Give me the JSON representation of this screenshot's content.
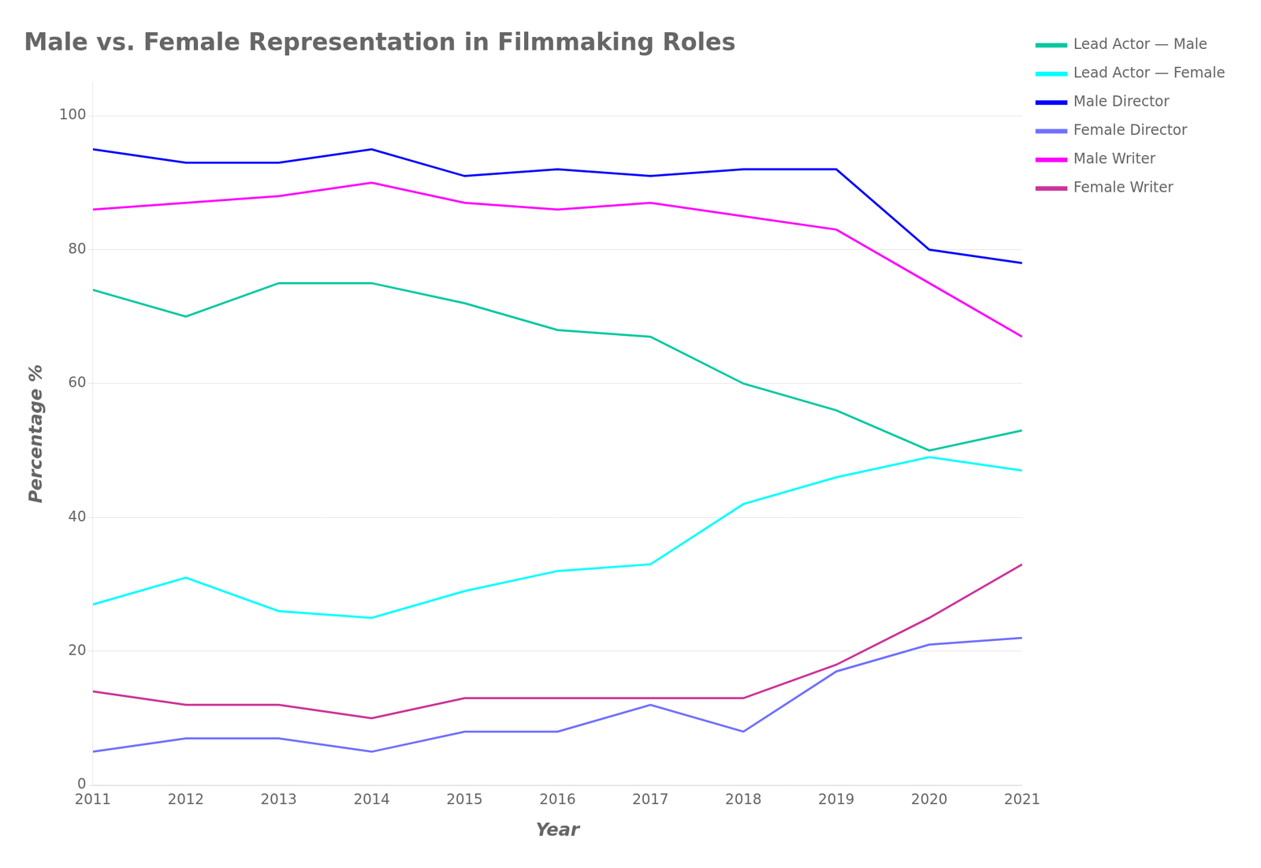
{
  "chart_data": {
    "type": "line",
    "title": "Male vs. Female Representation in Filmmaking Roles",
    "xlabel": "Year",
    "ylabel": "Percentage %",
    "x": [
      2011,
      2012,
      2013,
      2014,
      2015,
      2016,
      2017,
      2018,
      2019,
      2020,
      2021
    ],
    "series": [
      {
        "name": "Lead Actor — Male",
        "color": "#00C8A0",
        "values": [
          74,
          70,
          75,
          75,
          72,
          68,
          67,
          60,
          56,
          50,
          53
        ]
      },
      {
        "name": "Lead Actor — Female",
        "color": "#00FFFF",
        "values": [
          27,
          31,
          26,
          25,
          29,
          32,
          33,
          42,
          46,
          49,
          47
        ]
      },
      {
        "name": "Male Director",
        "color": "#0000FF",
        "values": [
          95,
          93,
          93,
          95,
          91,
          92,
          91,
          92,
          92,
          80,
          78
        ]
      },
      {
        "name": "Female Director",
        "color": "#7070FF",
        "values": [
          5,
          7,
          7,
          5,
          8,
          8,
          12,
          8,
          17,
          21,
          22
        ]
      },
      {
        "name": "Male Writer",
        "color": "#FF00FF",
        "values": [
          86,
          87,
          88,
          90,
          87,
          86,
          87,
          85,
          83,
          75,
          67
        ]
      },
      {
        "name": "Female Writer",
        "color": "#CC3399",
        "values": [
          14,
          12,
          12,
          10,
          13,
          13,
          13,
          13,
          18,
          25,
          33
        ]
      }
    ],
    "xlim": [
      2011,
      2021
    ],
    "xticks": [
      2011,
      2012,
      2013,
      2014,
      2015,
      2016,
      2017,
      2018,
      2019,
      2020,
      2021
    ],
    "ylim": [
      0,
      105
    ],
    "yticks": [
      0,
      20,
      40,
      60,
      80,
      100
    ],
    "grid": true,
    "legend": "right"
  }
}
